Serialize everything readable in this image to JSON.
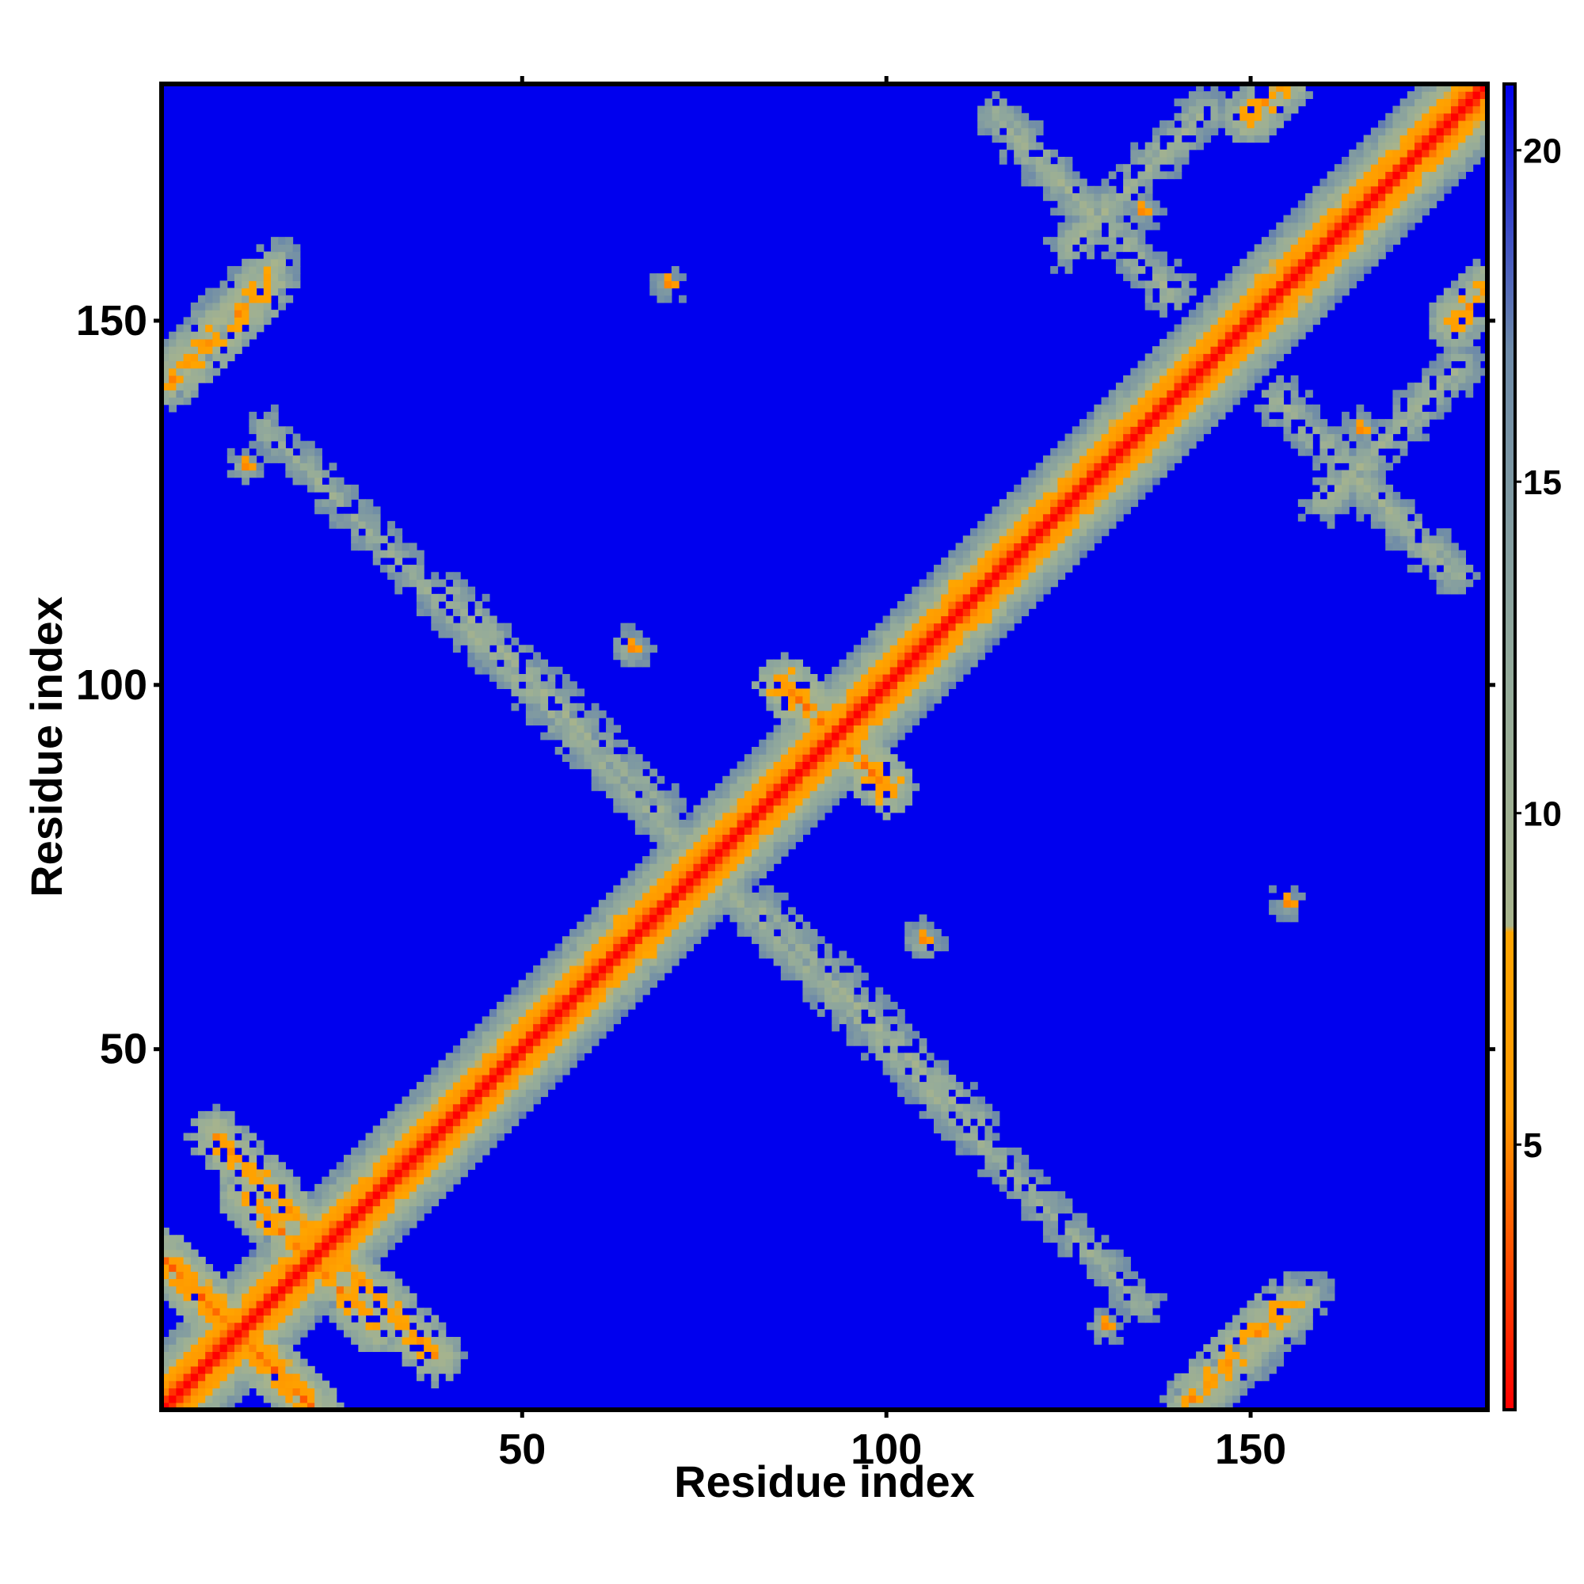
{
  "chart_data": {
    "type": "heatmap",
    "title": "",
    "xlabel": "Residue index",
    "ylabel": "Residue index",
    "n_residues": 182,
    "xlim": [
      1,
      182
    ],
    "ylim": [
      1,
      182
    ],
    "x_ticks": [
      50,
      100,
      150
    ],
    "y_ticks": [
      50,
      100,
      150
    ],
    "x_tick_labels": [
      "50",
      "100",
      "150"
    ],
    "y_tick_labels": [
      "50",
      "100",
      "150"
    ],
    "colorbar": {
      "range": [
        1,
        21
      ],
      "ticks": [
        5,
        10,
        15,
        20
      ],
      "tick_labels": [
        "5",
        "10",
        "15",
        "20"
      ],
      "colors": {
        "low": "#ff0000",
        "mid_low": "#ff9900",
        "mid": "#9aae8c",
        "mid_high": "#5577aa",
        "high": "#0000ee"
      },
      "stops": [
        {
          "value": 1,
          "color": "#ff0000"
        },
        {
          "value": 5.5,
          "color": "#ff9900"
        },
        {
          "value": 8.2,
          "color": "#ffa500"
        },
        {
          "value": 8.3,
          "color": "#a8b48c"
        },
        {
          "value": 12,
          "color": "#94ab9a"
        },
        {
          "value": 17,
          "color": "#6d8aa8"
        },
        {
          "value": 21,
          "color": "#0000ee"
        }
      ]
    },
    "symmetric": true,
    "background_value": 21,
    "diagonal_value": 1,
    "contact_features": [
      {
        "kind": "diagonal_band",
        "from": 1,
        "to": 182,
        "value": 1
      },
      {
        "kind": "antiparallel",
        "i_start": 1,
        "j_start": 21,
        "length": 20,
        "value": 5
      },
      {
        "kind": "antiparallel",
        "i_start": 8,
        "j_start": 38,
        "length": 14,
        "value": 6
      },
      {
        "kind": "antiparallel",
        "i_start": 12,
        "j_start": 30,
        "length": 12,
        "value": 6
      },
      {
        "kind": "antiparallel",
        "i_start": 86,
        "j_start": 100,
        "length": 10,
        "value": 5
      },
      {
        "kind": "antiparallel",
        "i_start": 86,
        "j_start": 100,
        "length": 10,
        "value": 5
      },
      {
        "kind": "parallel",
        "i_start": 1,
        "j_start": 143,
        "length": 16,
        "value": 9
      },
      {
        "kind": "parallel",
        "i_start": 142,
        "j_start": 2,
        "length": 14,
        "value": 6
      },
      {
        "kind": "antiparallel",
        "i_start": 15,
        "j_start": 135,
        "length": 80,
        "value": 11
      },
      {
        "kind": "antiparallel",
        "i_start": 40,
        "j_start": 112,
        "length": 30,
        "value": 10
      },
      {
        "kind": "antiparallel",
        "i_start": 115,
        "j_start": 178,
        "length": 25,
        "value": 10
      },
      {
        "kind": "parallel",
        "i_start": 125,
        "j_start": 160,
        "length": 20,
        "value": 10
      },
      {
        "kind": "parallel",
        "i_start": 150,
        "j_start": 178,
        "length": 6,
        "value": 6
      },
      {
        "kind": "blob",
        "i": 70,
        "j": 155,
        "radius": 10,
        "value": 12
      },
      {
        "kind": "blob",
        "i": 155,
        "j": 70,
        "radius": 10,
        "value": 12
      },
      {
        "kind": "blob",
        "i": 105,
        "j": 65,
        "radius": 12,
        "value": 11
      },
      {
        "kind": "blob",
        "i": 65,
        "j": 105,
        "radius": 12,
        "value": 11
      },
      {
        "kind": "blob",
        "i": 165,
        "j": 135,
        "radius": 18,
        "value": 12
      },
      {
        "kind": "blob",
        "i": 135,
        "j": 165,
        "radius": 18,
        "value": 12
      },
      {
        "kind": "blob",
        "i": 12,
        "j": 130,
        "radius": 18,
        "value": 12
      },
      {
        "kind": "blob",
        "i": 130,
        "j": 12,
        "radius": 18,
        "value": 12
      }
    ]
  }
}
